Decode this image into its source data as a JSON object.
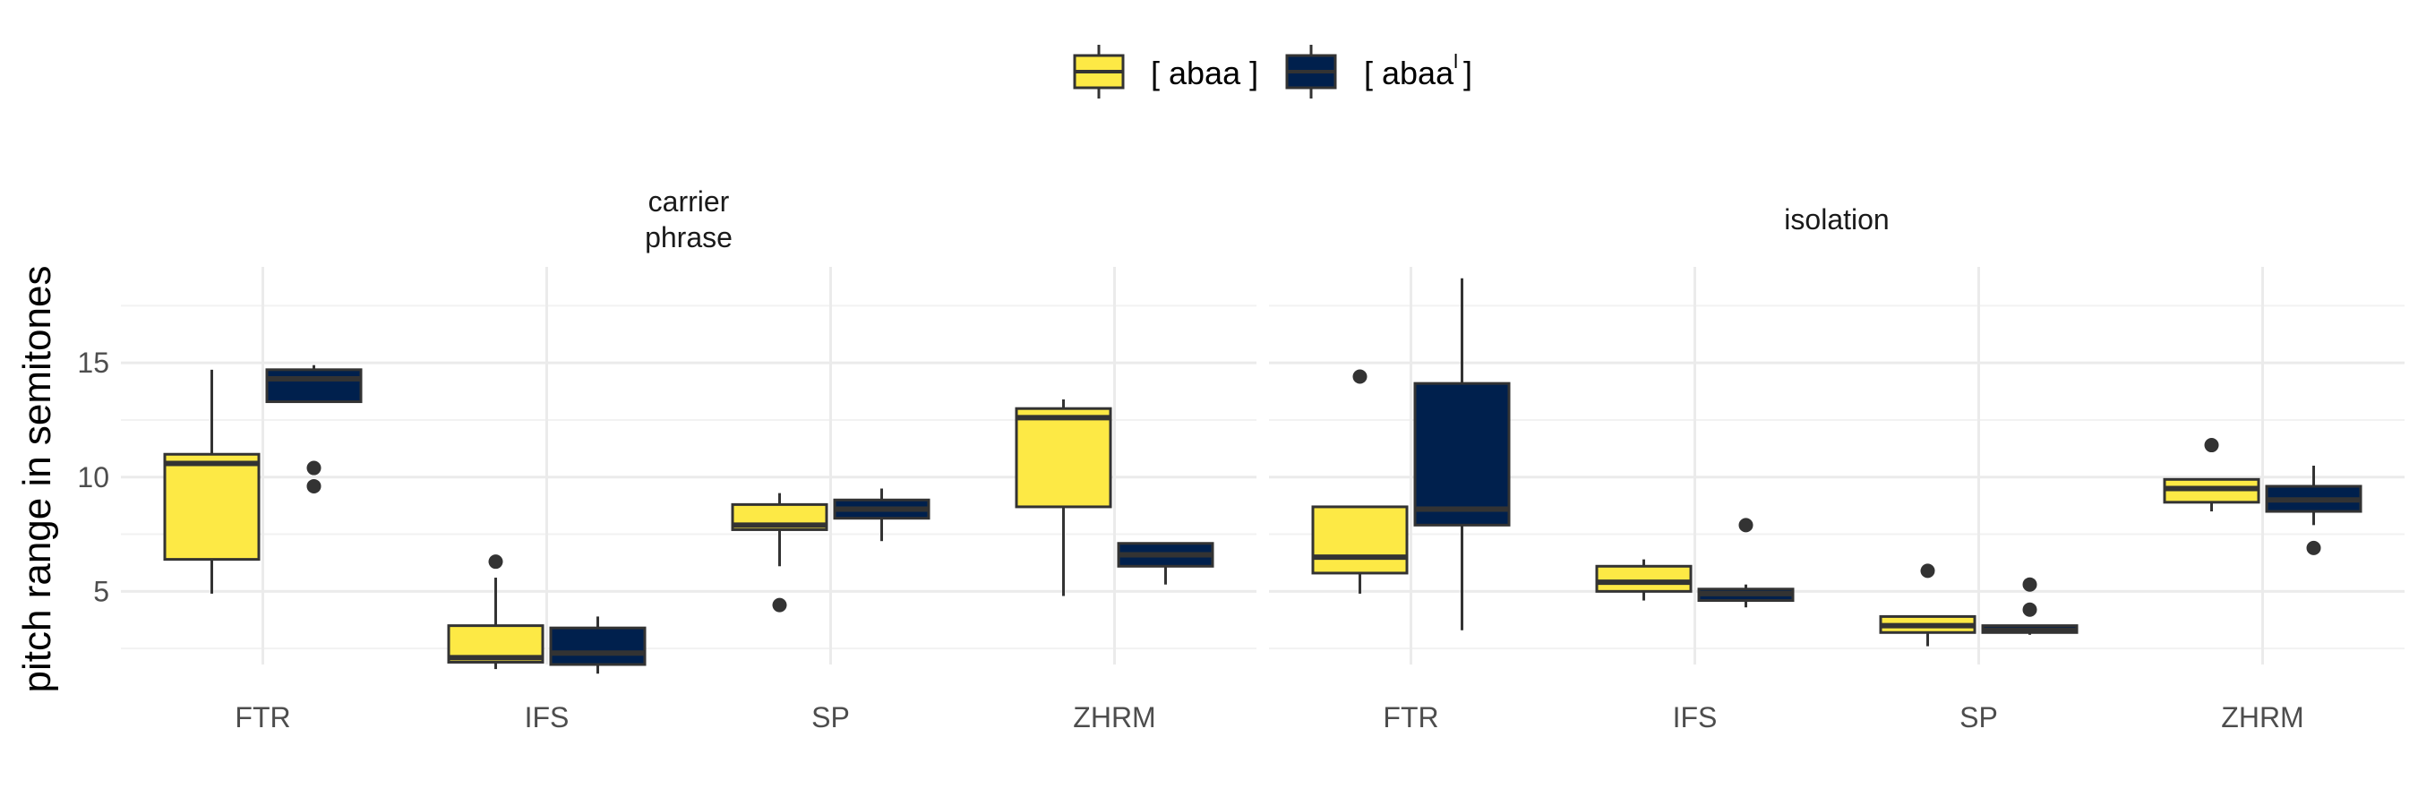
{
  "chart_data": {
    "type": "box",
    "ylabel": "pitch range  in semitones",
    "y_ticks": [
      5,
      10,
      15
    ],
    "ylim": [
      1.8,
      19.2
    ],
    "categories": [
      "FTR",
      "IFS",
      "SP",
      "ZHRM"
    ],
    "legend": {
      "position": "top",
      "items": [
        {
          "label": "[ abaa ]",
          "color": "#FDE945"
        },
        {
          "label": "[ abaa",
          "suffix": "l",
          "close": "]",
          "color": "#00204D"
        }
      ]
    },
    "panels": [
      {
        "title_lines": [
          "carrier",
          "phrase"
        ],
        "groups": [
          {
            "category": "FTR",
            "series": 0,
            "whisker_low": 4.9,
            "q1": 6.4,
            "median": 10.6,
            "q3": 11.0,
            "whisker_high": 14.7,
            "outliers": []
          },
          {
            "category": "FTR",
            "series": 1,
            "whisker_low": 13.3,
            "q1": 13.3,
            "median": 14.3,
            "q3": 14.7,
            "whisker_high": 14.9,
            "outliers": [
              10.4,
              9.6
            ]
          },
          {
            "category": "IFS",
            "series": 0,
            "whisker_low": 1.6,
            "q1": 1.9,
            "median": 2.1,
            "q3": 3.5,
            "whisker_high": 5.6,
            "outliers": [
              6.3
            ]
          },
          {
            "category": "IFS",
            "series": 1,
            "whisker_low": 1.4,
            "q1": 1.8,
            "median": 2.3,
            "q3": 3.4,
            "whisker_high": 3.9,
            "outliers": []
          },
          {
            "category": "SP",
            "series": 0,
            "whisker_low": 6.1,
            "q1": 7.7,
            "median": 7.9,
            "q3": 8.8,
            "whisker_high": 9.3,
            "outliers": [
              4.4
            ]
          },
          {
            "category": "SP",
            "series": 1,
            "whisker_low": 7.2,
            "q1": 8.2,
            "median": 8.6,
            "q3": 9.0,
            "whisker_high": 9.5,
            "outliers": []
          },
          {
            "category": "ZHRM",
            "series": 0,
            "whisker_low": 4.8,
            "q1": 8.7,
            "median": 12.6,
            "q3": 13.0,
            "whisker_high": 13.4,
            "outliers": []
          },
          {
            "category": "ZHRM",
            "series": 1,
            "whisker_low": 5.3,
            "q1": 6.1,
            "median": 6.6,
            "q3": 7.1,
            "whisker_high": 7.1,
            "outliers": []
          }
        ]
      },
      {
        "title_lines": [
          "isolation"
        ],
        "groups": [
          {
            "category": "FTR",
            "series": 0,
            "whisker_low": 4.9,
            "q1": 5.8,
            "median": 6.5,
            "q3": 8.7,
            "whisker_high": 8.7,
            "outliers": [
              14.4
            ]
          },
          {
            "category": "FTR",
            "series": 1,
            "whisker_low": 3.3,
            "q1": 7.9,
            "median": 8.6,
            "q3": 14.1,
            "whisker_high": 18.7,
            "outliers": []
          },
          {
            "category": "IFS",
            "series": 0,
            "whisker_low": 4.6,
            "q1": 5.0,
            "median": 5.4,
            "q3": 6.1,
            "whisker_high": 6.4,
            "outliers": []
          },
          {
            "category": "IFS",
            "series": 1,
            "whisker_low": 4.3,
            "q1": 4.6,
            "median": 4.9,
            "q3": 5.1,
            "whisker_high": 5.3,
            "outliers": [
              7.9
            ]
          },
          {
            "category": "SP",
            "series": 0,
            "whisker_low": 2.6,
            "q1": 3.2,
            "median": 3.5,
            "q3": 3.9,
            "whisker_high": 3.9,
            "outliers": [
              5.9
            ]
          },
          {
            "category": "SP",
            "series": 1,
            "whisker_low": 3.1,
            "q1": 3.2,
            "median": 3.3,
            "q3": 3.5,
            "whisker_high": 3.5,
            "outliers": [
              5.3,
              4.2
            ]
          },
          {
            "category": "ZHRM",
            "series": 0,
            "whisker_low": 8.5,
            "q1": 8.9,
            "median": 9.5,
            "q3": 9.9,
            "whisker_high": 9.9,
            "outliers": [
              11.4
            ]
          },
          {
            "category": "ZHRM",
            "series": 1,
            "whisker_low": 7.9,
            "q1": 8.5,
            "median": 9.0,
            "q3": 9.6,
            "whisker_high": 10.5,
            "outliers": [
              6.9
            ]
          }
        ]
      }
    ],
    "grid": true,
    "style": {
      "major_grid_color": "#EBEBEB",
      "minor_grid_color": "#F2F2F2",
      "box_outline_color": "#333333",
      "median_color": "#333333",
      "outlier_color": "#333333"
    }
  }
}
